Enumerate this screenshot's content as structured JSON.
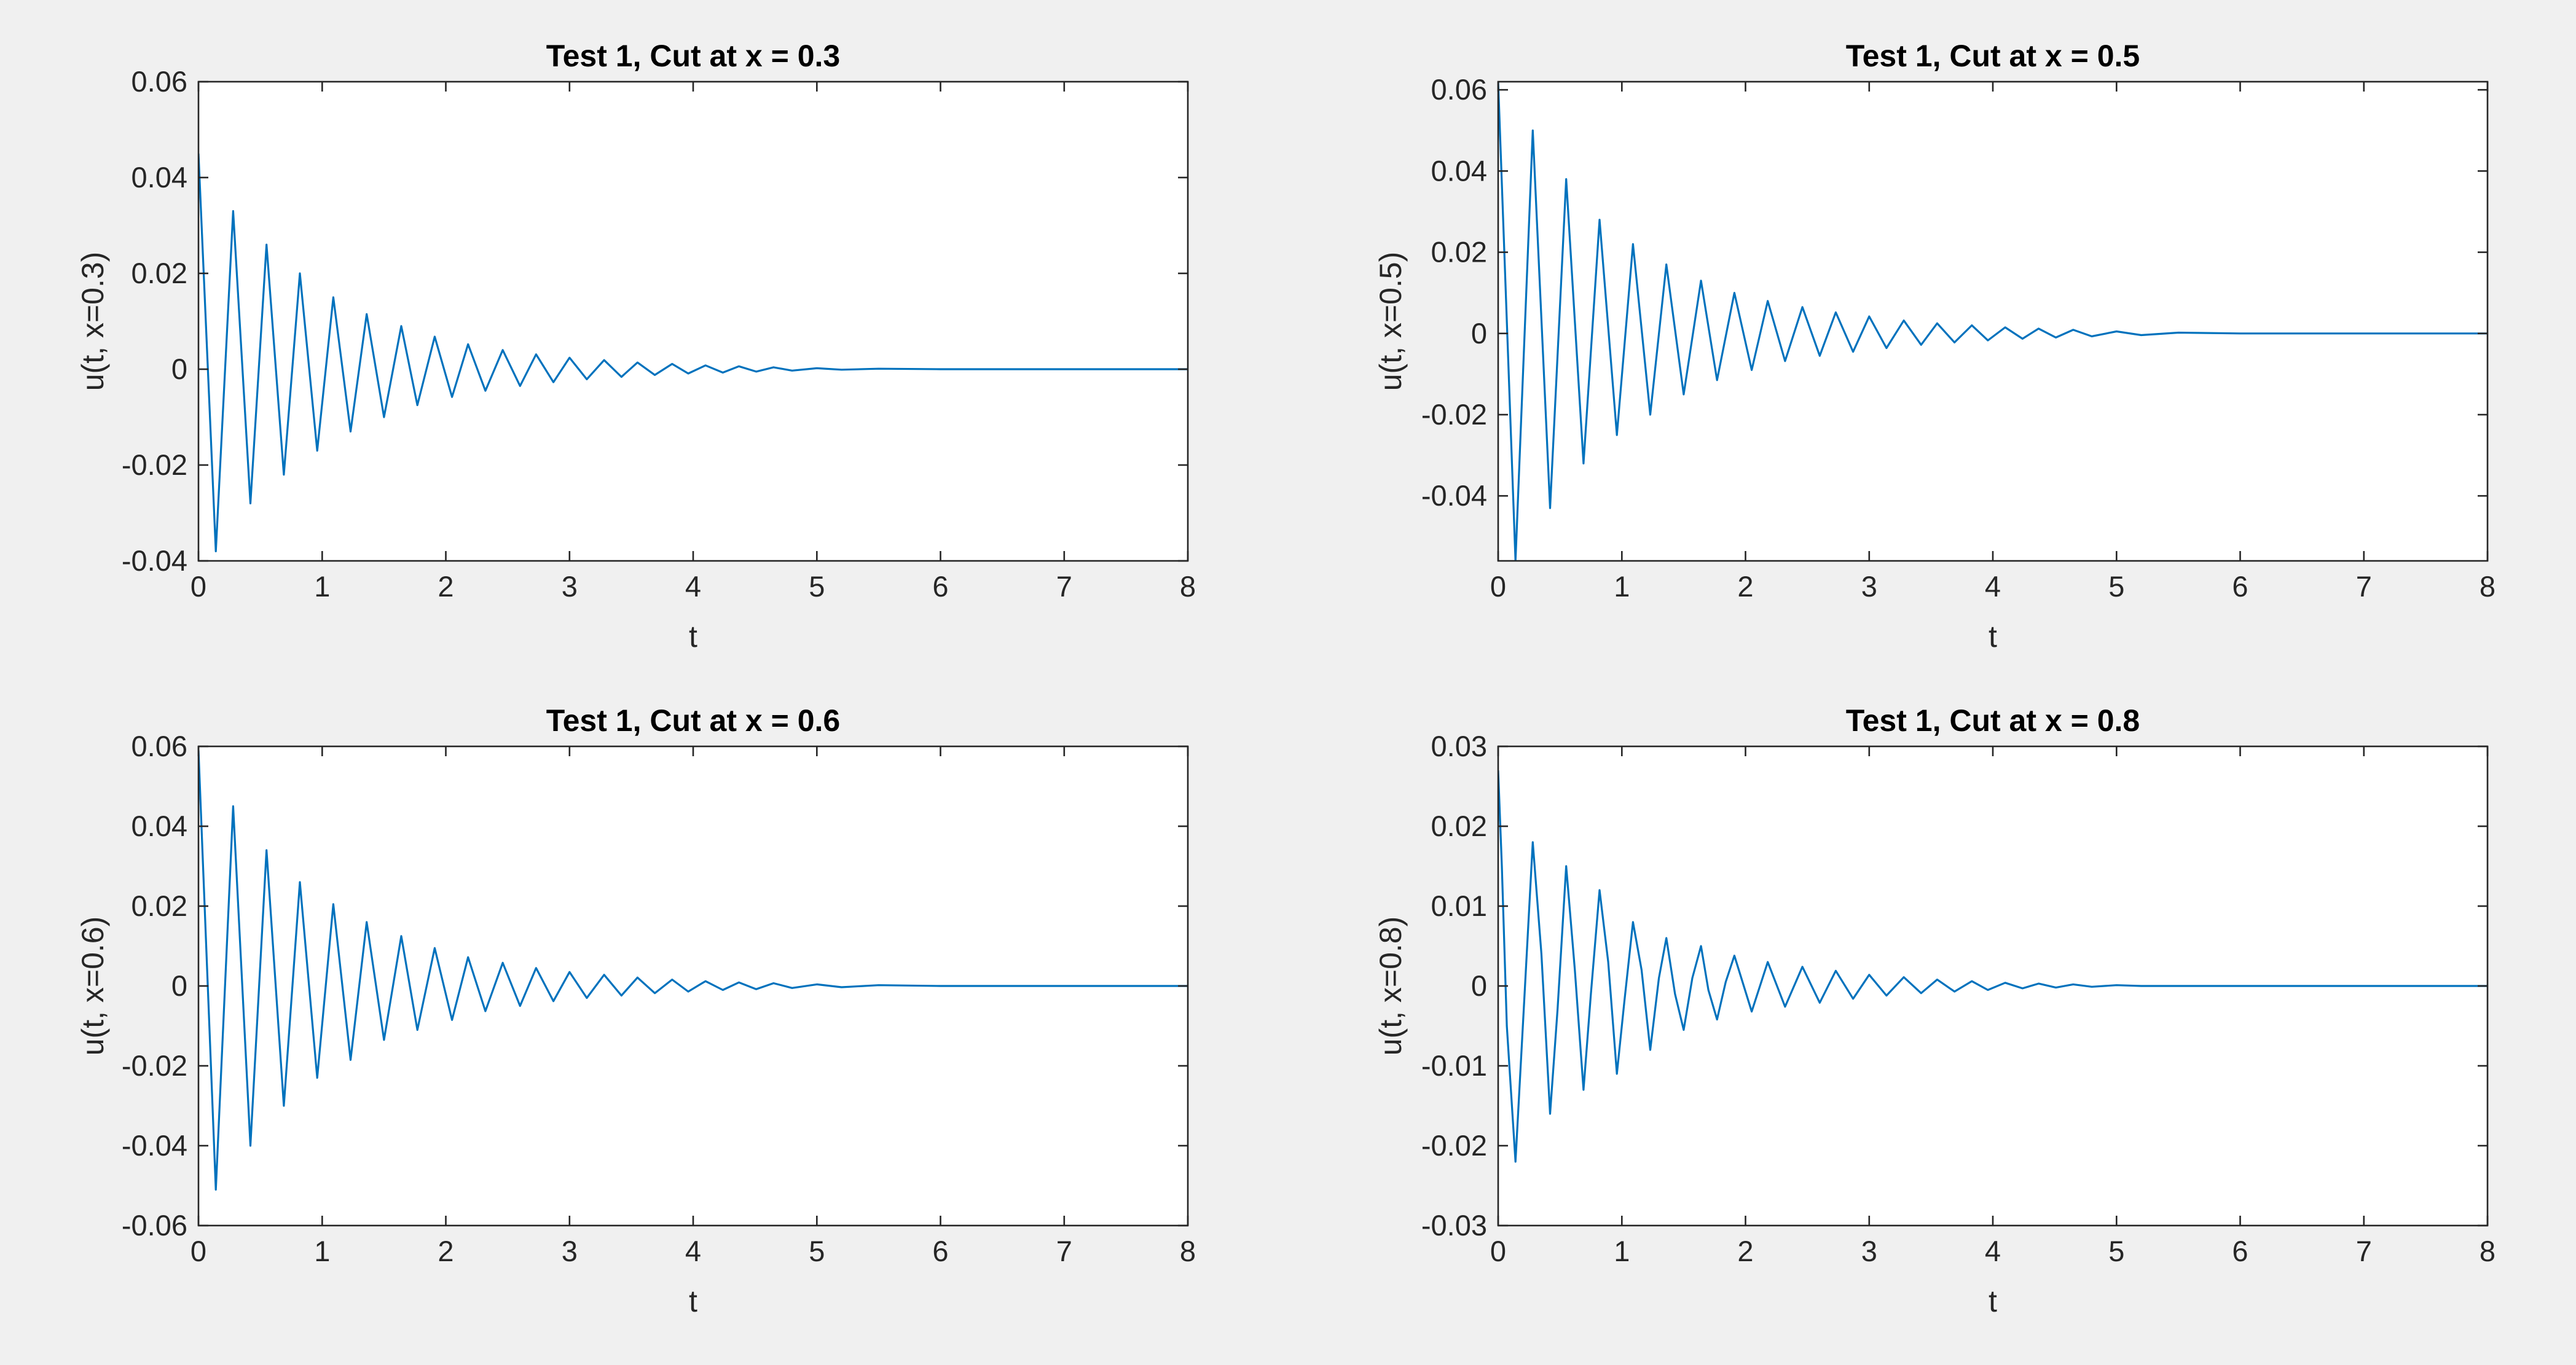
{
  "colors": {
    "figure_background": "#f0f0f0",
    "axes_background": "#ffffff",
    "axis": "#262626",
    "series": "#0072bd"
  },
  "chart_data": [
    {
      "type": "line",
      "title": "Test 1, Cut at x = 0.3",
      "xlabel": "t",
      "ylabel": "u(t, x=0.3)",
      "xlim": [
        0,
        8
      ],
      "ylim": [
        -0.04,
        0.06
      ],
      "xticks": [
        "0",
        "1",
        "2",
        "3",
        "4",
        "5",
        "6",
        "7",
        "8"
      ],
      "yticks": [
        "-0.04",
        "-0.02",
        "0",
        "0.02",
        "0.04",
        "0.06"
      ],
      "grid": false,
      "legend": "none",
      "series": [
        {
          "name": "",
          "x": [
            0,
            0.14,
            0.28,
            0.42,
            0.55,
            0.69,
            0.82,
            0.96,
            1.09,
            1.23,
            1.36,
            1.5,
            1.64,
            1.77,
            1.91,
            2.05,
            2.18,
            2.32,
            2.46,
            2.6,
            2.73,
            2.87,
            3.0,
            3.14,
            3.28,
            3.42,
            3.55,
            3.69,
            3.83,
            3.96,
            4.1,
            4.24,
            4.37,
            4.51,
            4.65,
            4.8,
            5.0,
            5.2,
            5.5,
            6.0,
            6.5,
            7.0,
            7.5,
            8.0
          ],
          "y": [
            0.045,
            -0.038,
            0.033,
            -0.028,
            0.026,
            -0.022,
            0.02,
            -0.017,
            0.015,
            -0.013,
            0.0115,
            -0.01,
            0.009,
            -0.0075,
            0.0068,
            -0.0058,
            0.0052,
            -0.0045,
            0.004,
            -0.0035,
            0.0031,
            -0.0027,
            0.0024,
            -0.0021,
            0.0019,
            -0.0016,
            0.0014,
            -0.0012,
            0.0011,
            -0.0009,
            0.0008,
            -0.0007,
            0.0006,
            -0.0005,
            0.0004,
            -0.0003,
            0.0002,
            -0.0001,
            0.0001,
            0,
            0,
            0,
            0,
            0
          ]
        }
      ]
    },
    {
      "type": "line",
      "title": "Test 1, Cut at x = 0.5",
      "xlabel": "t",
      "ylabel": "u(t, x=0.5)",
      "xlim": [
        0,
        8
      ],
      "ylim": [
        -0.056,
        0.062
      ],
      "xticks": [
        "0",
        "1",
        "2",
        "3",
        "4",
        "5",
        "6",
        "7",
        "8"
      ],
      "yticks": [
        "-0.04",
        "-0.02",
        "0",
        "0.02",
        "0.04",
        "0.06"
      ],
      "grid": false,
      "legend": "none",
      "series": [
        {
          "name": "",
          "x": [
            0,
            0.14,
            0.28,
            0.42,
            0.55,
            0.69,
            0.82,
            0.96,
            1.09,
            1.23,
            1.36,
            1.5,
            1.64,
            1.77,
            1.91,
            2.05,
            2.18,
            2.32,
            2.46,
            2.6,
            2.73,
            2.87,
            3.0,
            3.14,
            3.28,
            3.42,
            3.55,
            3.69,
            3.83,
            3.96,
            4.1,
            4.24,
            4.37,
            4.51,
            4.65,
            4.8,
            5.0,
            5.2,
            5.5,
            6.0,
            6.5,
            7.0,
            7.5,
            8.0
          ],
          "y": [
            0.062,
            -0.056,
            0.05,
            -0.043,
            0.038,
            -0.032,
            0.028,
            -0.025,
            0.022,
            -0.02,
            0.017,
            -0.015,
            0.013,
            -0.0115,
            0.01,
            -0.009,
            0.008,
            -0.0068,
            0.0065,
            -0.0055,
            0.0052,
            -0.0045,
            0.0042,
            -0.0036,
            0.0032,
            -0.0028,
            0.0025,
            -0.0022,
            0.002,
            -0.0017,
            0.0015,
            -0.0013,
            0.0012,
            -0.001,
            0.0009,
            -0.0007,
            0.0005,
            -0.0004,
            0.0002,
            0,
            0,
            0,
            0,
            0
          ]
        }
      ]
    },
    {
      "type": "line",
      "title": "Test 1, Cut at x = 0.6",
      "xlabel": "t",
      "ylabel": "u(t, x=0.6)",
      "xlim": [
        0,
        8
      ],
      "ylim": [
        -0.06,
        0.06
      ],
      "xticks": [
        "0",
        "1",
        "2",
        "3",
        "4",
        "5",
        "6",
        "7",
        "8"
      ],
      "yticks": [
        "-0.06",
        "-0.04",
        "-0.02",
        "0",
        "0.02",
        "0.04",
        "0.06"
      ],
      "grid": false,
      "legend": "none",
      "series": [
        {
          "name": "",
          "x": [
            0,
            0.14,
            0.28,
            0.42,
            0.55,
            0.69,
            0.82,
            0.96,
            1.09,
            1.23,
            1.36,
            1.5,
            1.64,
            1.77,
            1.91,
            2.05,
            2.18,
            2.32,
            2.46,
            2.6,
            2.73,
            2.87,
            3.0,
            3.14,
            3.28,
            3.42,
            3.55,
            3.69,
            3.83,
            3.96,
            4.1,
            4.24,
            4.37,
            4.51,
            4.65,
            4.8,
            5.0,
            5.2,
            5.5,
            6.0,
            6.5,
            7.0,
            7.5,
            8.0
          ],
          "y": [
            0.059,
            -0.051,
            0.045,
            -0.04,
            0.034,
            -0.03,
            0.026,
            -0.023,
            0.0205,
            -0.0185,
            0.016,
            -0.0135,
            0.0125,
            -0.011,
            0.0095,
            -0.0085,
            0.0072,
            -0.0063,
            0.0058,
            -0.005,
            0.0045,
            -0.0038,
            0.0035,
            -0.003,
            0.0028,
            -0.0024,
            0.0021,
            -0.0018,
            0.0016,
            -0.0014,
            0.0012,
            -0.001,
            0.0009,
            -0.0008,
            0.0007,
            -0.0005,
            0.0004,
            -0.0003,
            0.0002,
            0,
            0,
            0,
            0,
            0
          ]
        }
      ]
    },
    {
      "type": "line",
      "title": "Test 1, Cut at x = 0.8",
      "xlabel": "t",
      "ylabel": "u(t, x=0.8)",
      "xlim": [
        0,
        8
      ],
      "ylim": [
        -0.03,
        0.03
      ],
      "xticks": [
        "0",
        "1",
        "2",
        "3",
        "4",
        "5",
        "6",
        "7",
        "8"
      ],
      "yticks": [
        "-0.03",
        "-0.02",
        "-0.01",
        "0",
        "0.01",
        "0.02",
        "0.03"
      ],
      "grid": false,
      "legend": "none",
      "series": [
        {
          "name": "",
          "x": [
            0,
            0.03,
            0.07,
            0.14,
            0.21,
            0.28,
            0.35,
            0.42,
            0.48,
            0.55,
            0.62,
            0.69,
            0.75,
            0.82,
            0.89,
            0.96,
            1.02,
            1.09,
            1.16,
            1.23,
            1.3,
            1.36,
            1.43,
            1.5,
            1.57,
            1.64,
            1.7,
            1.77,
            1.84,
            1.91,
            2.05,
            2.18,
            2.32,
            2.46,
            2.6,
            2.73,
            2.87,
            3.0,
            3.14,
            3.28,
            3.42,
            3.55,
            3.69,
            3.83,
            3.96,
            4.1,
            4.24,
            4.37,
            4.51,
            4.65,
            4.8,
            5.0,
            5.2,
            5.5,
            6.0,
            6.5,
            7.0,
            7.5,
            8.0
          ],
          "y": [
            0.027,
            0.015,
            -0.005,
            -0.022,
            -0.002,
            0.018,
            0.004,
            -0.016,
            -0.003,
            0.015,
            0.002,
            -0.013,
            -0.001,
            0.012,
            0.003,
            -0.011,
            -0.002,
            0.008,
            0.002,
            -0.008,
            0.001,
            0.006,
            -0.001,
            -0.0055,
            0.001,
            0.005,
            -0.0005,
            -0.0042,
            0.0005,
            0.0038,
            -0.0032,
            0.003,
            -0.0026,
            0.0024,
            -0.0021,
            0.0019,
            -0.0016,
            0.0014,
            -0.0012,
            0.0011,
            -0.0009,
            0.0008,
            -0.0007,
            0.0006,
            -0.0005,
            0.0004,
            -0.0003,
            0.0003,
            -0.0002,
            0.0002,
            -0.0001,
            0.0001,
            0,
            0,
            0,
            0,
            0,
            0,
            0
          ]
        }
      ]
    }
  ]
}
